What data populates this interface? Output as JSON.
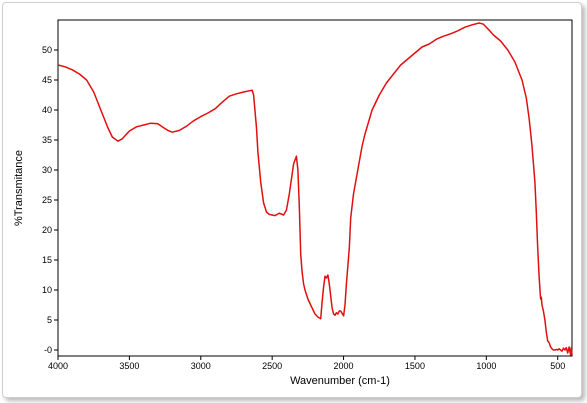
{
  "chart_data": {
    "type": "line",
    "xlabel": "Wavenumber  (cm-1)",
    "ylabel": "%Transmitance",
    "xlim": [
      4000,
      400
    ],
    "ylim": [
      -1,
      55
    ],
    "x_reversed": true,
    "grid": false,
    "legend": "none",
    "line_color": "#e01010",
    "x_ticks": [
      4000,
      3500,
      3000,
      2500,
      2000,
      1500,
      1000,
      500
    ],
    "x_tick_labels": [
      "4000",
      "3500",
      "3000",
      "2500",
      "2000",
      "1500",
      "1000",
      "500"
    ],
    "y_ticks": [
      0,
      5,
      10,
      15,
      20,
      25,
      30,
      35,
      40,
      45,
      50
    ],
    "y_tick_labels": [
      "-0",
      "5",
      "10",
      "15",
      "20",
      "25",
      "30",
      "35",
      "40",
      "45",
      "50"
    ],
    "series": [
      {
        "x": [
          4000,
          3950,
          3900,
          3850,
          3800,
          3750,
          3700,
          3650,
          3620,
          3580,
          3550,
          3500,
          3450,
          3400,
          3350,
          3300,
          3270,
          3230,
          3200,
          3150,
          3100,
          3050,
          3000,
          2950,
          2900,
          2850,
          2800,
          2750,
          2700,
          2640,
          2630,
          2610,
          2600,
          2580,
          2560,
          2540,
          2520,
          2500,
          2480,
          2450,
          2420,
          2400,
          2380,
          2350,
          2330,
          2320,
          2310,
          2300,
          2290,
          2280,
          2270,
          2250,
          2220,
          2200,
          2180,
          2160,
          2150,
          2140,
          2130,
          2120,
          2110,
          2100,
          2090,
          2080,
          2070,
          2060,
          2050,
          2040,
          2030,
          2020,
          2000,
          1990,
          1980,
          1960,
          1950,
          1930,
          1900,
          1870,
          1850,
          1800,
          1750,
          1700,
          1650,
          1600,
          1550,
          1500,
          1450,
          1400,
          1350,
          1300,
          1250,
          1200,
          1150,
          1100,
          1050,
          1020,
          1000,
          980,
          950,
          900,
          850,
          800,
          750,
          720,
          700,
          680,
          660,
          650,
          640,
          630,
          620,
          615,
          610,
          605,
          600,
          590,
          580,
          570,
          560,
          550,
          540,
          530,
          520,
          510,
          500,
          490,
          480,
          470,
          460,
          450,
          440,
          430,
          420,
          410,
          405,
          400
        ],
        "y": [
          47.5,
          47.2,
          46.7,
          46,
          45,
          43,
          40,
          37,
          35.5,
          34.8,
          35.2,
          36.5,
          37.2,
          37.5,
          37.8,
          37.7,
          37.2,
          36.6,
          36.3,
          36.6,
          37.3,
          38.2,
          38.9,
          39.5,
          40.2,
          41.3,
          42.3,
          42.7,
          43,
          43.3,
          42.5,
          37,
          33,
          28,
          24.5,
          23,
          22.6,
          22.5,
          22.4,
          22.8,
          22.5,
          23.3,
          26,
          31,
          32.3,
          30,
          24,
          16,
          13,
          11,
          10,
          8.5,
          7,
          6,
          5.5,
          5.2,
          8,
          10.5,
          12.3,
          12,
          12.5,
          11,
          9,
          7,
          6,
          5.8,
          6.2,
          6,
          6.5,
          6.5,
          5.7,
          7.5,
          11,
          17,
          22,
          26,
          30,
          34,
          36,
          40,
          42.5,
          44.5,
          46,
          47.5,
          48.5,
          49.5,
          50.5,
          51,
          51.8,
          52.3,
          52.7,
          53.2,
          53.8,
          54.2,
          54.5,
          54.3,
          53.8,
          53.3,
          52.5,
          51.5,
          50,
          48,
          45,
          42,
          38.5,
          34,
          28,
          23,
          17,
          12,
          8.5,
          8.8,
          7.5,
          7,
          6.5,
          5,
          3,
          1.5,
          1.2,
          0.5,
          0.2,
          0,
          0,
          0.1,
          0,
          0.2,
          0,
          -0.2,
          0.3,
          0,
          0.4,
          -0.5,
          0.5,
          -0.8,
          0.4,
          -0.8
        ]
      }
    ]
  }
}
